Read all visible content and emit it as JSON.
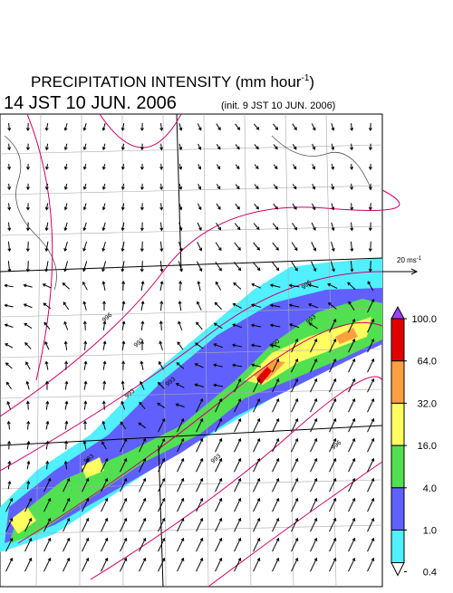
{
  "header": {
    "title": "PRECIPITATION INTENSITY (mm hour",
    "title_sup": "-1",
    "title_end": ")",
    "time": "14 JST 10 JUN. 2006",
    "init": "(init. 9 JST 10 JUN. 2006)"
  },
  "vector_scale": {
    "label": "20 ms",
    "label_sup": "-1"
  },
  "colorbar": {
    "ticks": [
      {
        "value": 100,
        "label": "100.0"
      },
      {
        "value": 64,
        "label": "64.0"
      },
      {
        "value": 32,
        "label": "32.0"
      },
      {
        "value": 16,
        "label": "16.0"
      },
      {
        "value": 4,
        "label": "4.0"
      },
      {
        "value": 1,
        "label": "1.0"
      },
      {
        "value": 0.4,
        "label": "0.4"
      }
    ],
    "colors": [
      "#e00000",
      "#ffa040",
      "#ffff60",
      "#50e050",
      "#6060ff",
      "#50f0ff"
    ],
    "over_color": "#a040ff"
  },
  "map": {
    "contour_labels": [
      "996",
      "993",
      "993",
      "993",
      "993",
      "990",
      "993",
      "996",
      "993",
      "996"
    ]
  }
}
